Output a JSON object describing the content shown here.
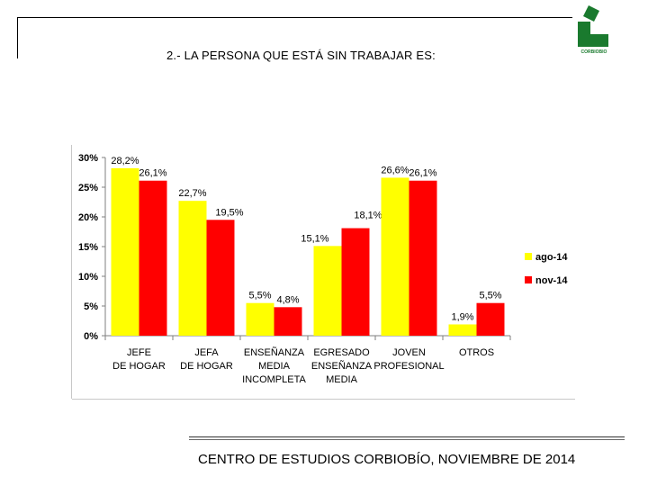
{
  "slide": {
    "title": "2.- LA PERSONA QUE ESTÁ SIN TRABAJAR ES:",
    "footer": "CENTRO DE ESTUDIOS CORBIOBÍO, NOVIEMBRE DE 2014",
    "logo_text": "CORBIOBIO",
    "logo_color": "#1a7a2e"
  },
  "chart_data": {
    "type": "bar",
    "title": "",
    "xlabel": "",
    "ylabel": "",
    "ylim": [
      0,
      30
    ],
    "yticks": [
      "0%",
      "5%",
      "10%",
      "15%",
      "20%",
      "25%",
      "30%"
    ],
    "ytick_values": [
      0,
      5,
      10,
      15,
      20,
      25,
      30
    ],
    "categories": [
      [
        "JEFE",
        "DE HOGAR"
      ],
      [
        "JEFA",
        "DE HOGAR"
      ],
      [
        "ENSEÑANZA",
        "MEDIA",
        "INCOMPLETA"
      ],
      [
        "EGRESADO",
        "ENSEÑANZA",
        "MEDIA"
      ],
      [
        "JOVEN",
        "PROFESIONAL"
      ],
      [
        "OTROS"
      ]
    ],
    "series": [
      {
        "name": "ago-14",
        "color": "#ffff00",
        "values": [
          28.2,
          22.7,
          5.5,
          15.1,
          26.6,
          1.9
        ],
        "labels": [
          "28,2%",
          "22,7%",
          "5,5%",
          "15,1%",
          "26,6%",
          "1,9%"
        ]
      },
      {
        "name": "nov-14",
        "color": "#ff0000",
        "values": [
          26.1,
          19.5,
          4.8,
          18.1,
          26.1,
          5.5
        ],
        "labels": [
          "26,1%",
          "19,5%",
          "4,8%",
          "18,1%",
          "26,1%",
          "5,5%"
        ]
      }
    ],
    "legend_position": "right",
    "grid": false
  }
}
